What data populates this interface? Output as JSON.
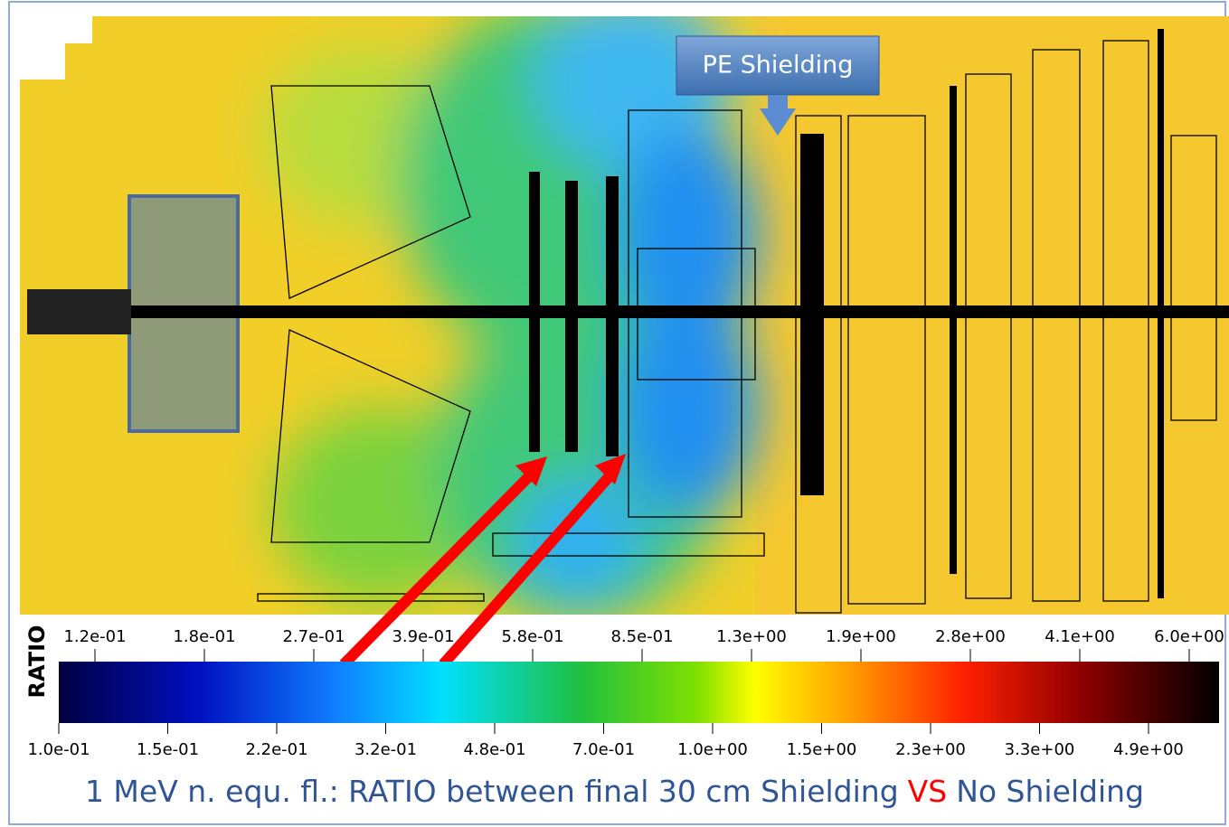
{
  "callout": "PE Shielding",
  "colorbar": {
    "title": "RATIO",
    "top_labels": [
      "1.2e-01",
      "1.8e-01",
      "2.7e-01",
      "3.9e-01",
      "5.8e-01",
      "8.5e-01",
      "1.3e+00",
      "1.9e+00",
      "2.8e+00",
      "4.1e+00",
      "6.0e+00"
    ],
    "bottom_labels": [
      "1.0e-01",
      "1.5e-01",
      "2.2e-01",
      "3.2e-01",
      "4.8e-01",
      "7.0e-01",
      "1.0e+00",
      "1.5e+00",
      "2.3e+00",
      "3.3e+00",
      "4.9e+00"
    ]
  },
  "caption": [
    "1 MeV n. equ. fl.: RATIO between final 30 cm Shielding",
    "VS",
    "No Shielding"
  ]
}
